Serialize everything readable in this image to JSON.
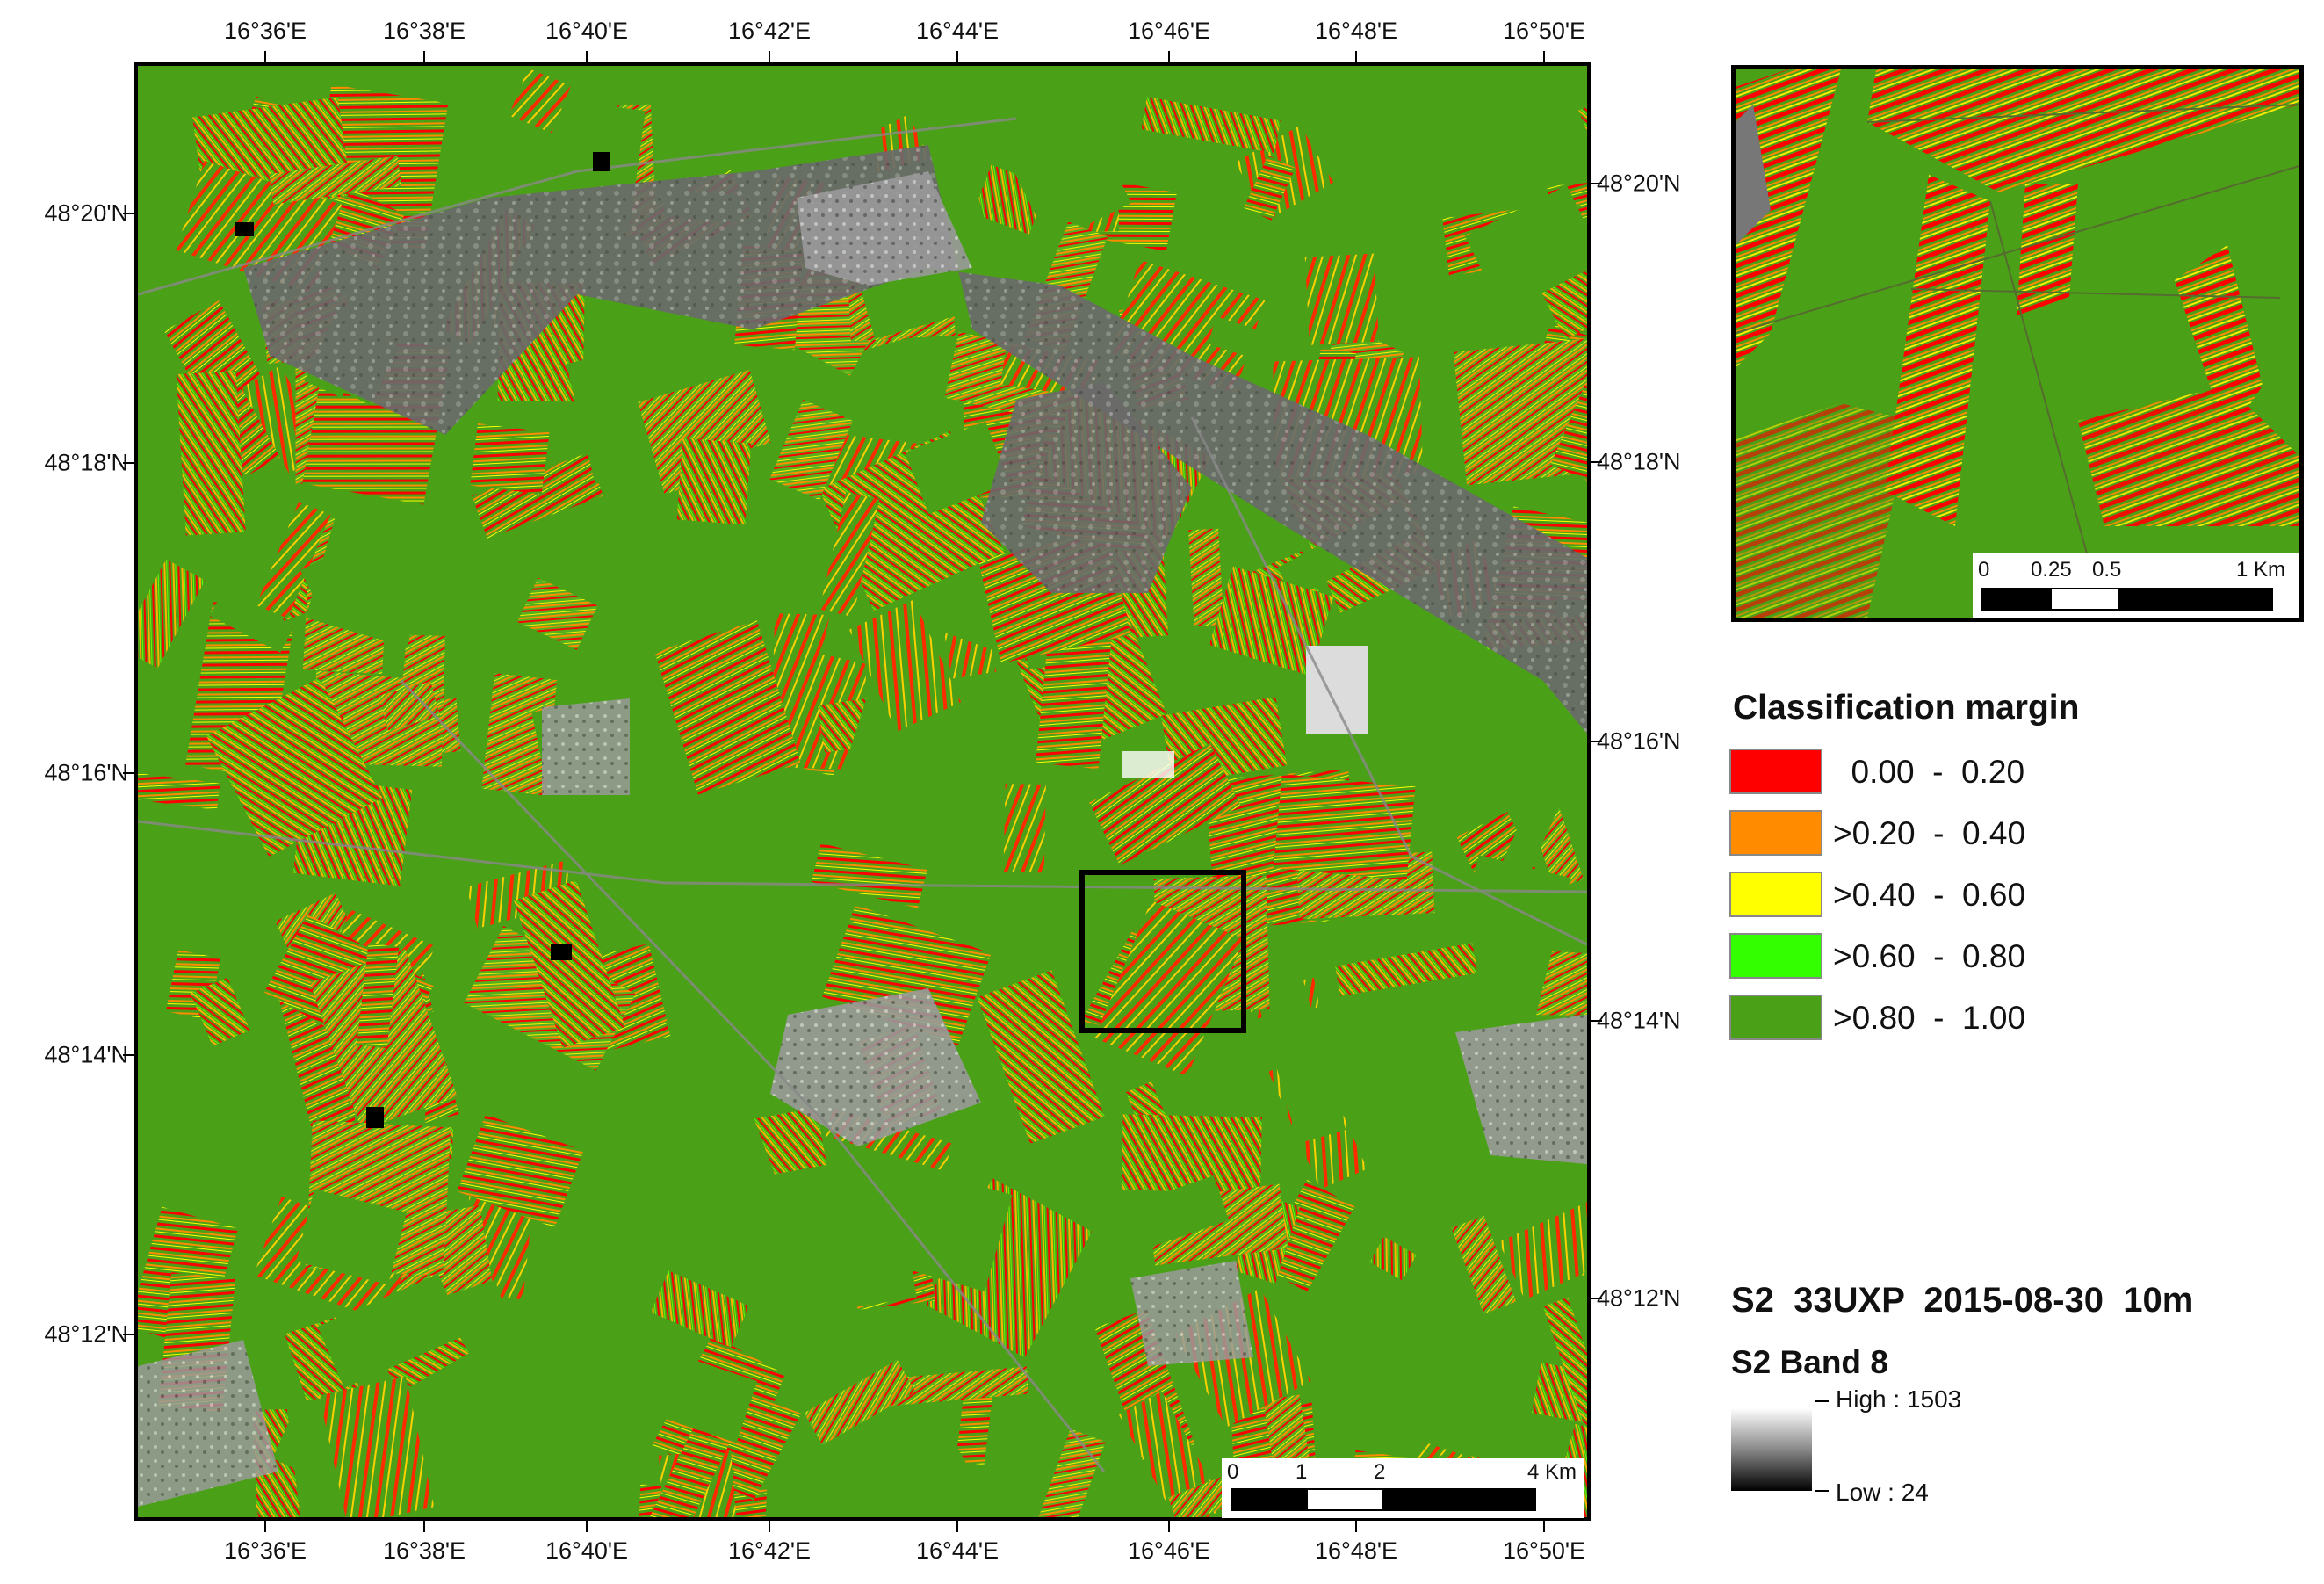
{
  "map": {
    "colors": {
      "background_green": "#4aa117",
      "red": "#ff0000",
      "orange": "#ff8c00",
      "yellow": "#ffff00",
      "light_green": "#33ff00",
      "gray_dark": "#4a4a4a",
      "gray_mid": "#7a7a7a"
    },
    "top_ticks": [
      "16°36'E",
      "16°38'E",
      "16°40'E",
      "16°42'E",
      "16°44'E",
      "16°46'E",
      "16°48'E",
      "16°50'E"
    ],
    "bottom_ticks": [
      "16°36'E",
      "16°38'E",
      "16°40'E",
      "16°42'E",
      "16°44'E",
      "16°46'E",
      "16°48'E",
      "16°50'E"
    ],
    "left_ticks": [
      "48°20'N",
      "48°18'N",
      "48°16'N",
      "48°14'N",
      "48°12'N"
    ],
    "right_ticks": [
      "48°20'N",
      "48°18'N",
      "48°16'N",
      "48°14'N",
      "48°12'N"
    ],
    "scalebar": {
      "labels": [
        "0",
        "1",
        "2",
        "4 Km"
      ]
    }
  },
  "inset": {
    "scalebar": {
      "labels": [
        "0",
        "0.25",
        "0.5",
        "1 Km"
      ]
    }
  },
  "legend": {
    "title": "Classification margin",
    "classes": [
      {
        "label": "  0.00  -  0.20",
        "color": "#ff0000"
      },
      {
        "label": ">0.20  -  0.40",
        "color": "#ff8c00"
      },
      {
        "label": ">0.40  -  0.60",
        "color": "#ffff00"
      },
      {
        "label": ">0.60  -  0.80",
        "color": "#33ff00"
      },
      {
        "label": ">0.80  -  1.00",
        "color": "#4aa117"
      }
    ]
  },
  "metadata": {
    "title": "S2  33UXP  2015-08-30  10m",
    "band": "S2 Band 8",
    "high_label": "High : 1503",
    "low_label": "Low : 24"
  }
}
